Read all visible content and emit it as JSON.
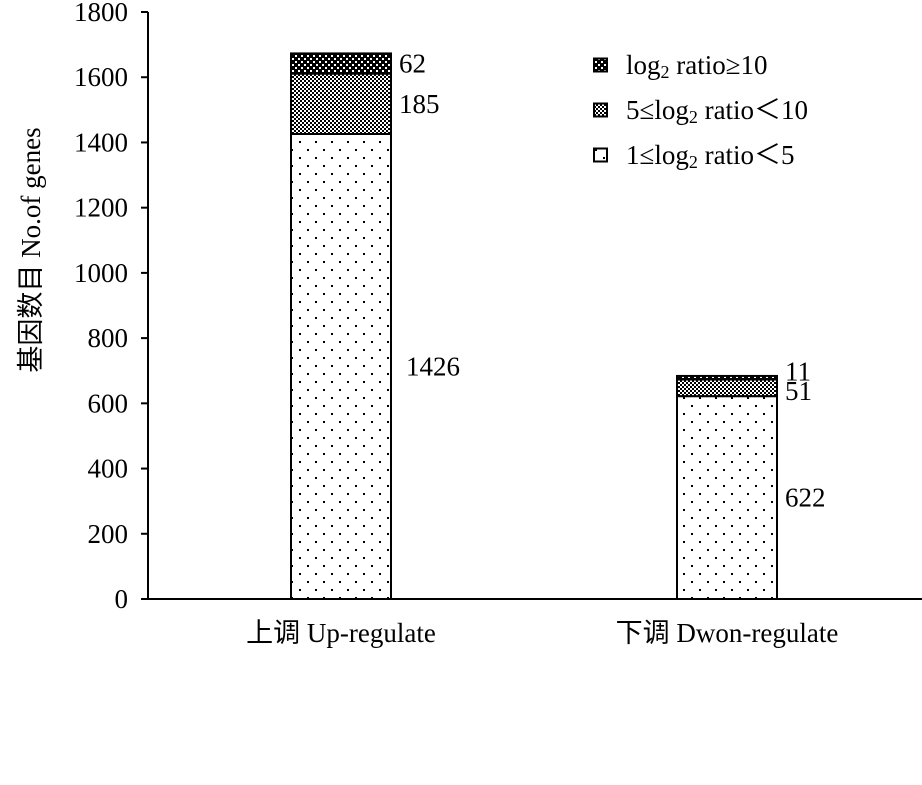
{
  "chart_data": {
    "type": "bar",
    "stacked": true,
    "title": "",
    "xlabel": "",
    "ylabel": "基因数目 No.of genes",
    "ylim": [
      0,
      1800
    ],
    "yticks": [
      0,
      200,
      400,
      600,
      800,
      1000,
      1200,
      1400,
      1600,
      1800
    ],
    "ytick_labels": [
      "0",
      "200",
      "400",
      "600",
      "800",
      "1000",
      "1200",
      "1400",
      "1600",
      "1800"
    ],
    "categories": [
      "上调 Up-regulate",
      "下调 Dwon-regulate"
    ],
    "series": [
      {
        "name": "1≤log2 ratio＜5",
        "legend_parts": [
          "1≤log",
          "2",
          " ratio＜5"
        ],
        "pattern": "sparse-dots",
        "values": [
          1426,
          622
        ],
        "labels": [
          "1426",
          "622"
        ]
      },
      {
        "name": "5≤log2 ratio＜10",
        "legend_parts": [
          "5≤log",
          "2",
          " ratio＜10"
        ],
        "pattern": "checker",
        "values": [
          185,
          51
        ],
        "labels": [
          "185",
          "51"
        ]
      },
      {
        "name": "log2 ratio≥10",
        "legend_parts": [
          "log",
          "2",
          " ratio≥10"
        ],
        "pattern": "dense-dots",
        "values": [
          62,
          11
        ],
        "labels": [
          "62",
          "11"
        ]
      }
    ],
    "legend": {
      "placement": "top-right",
      "order": [
        2,
        1,
        0
      ]
    },
    "grid": false
  }
}
